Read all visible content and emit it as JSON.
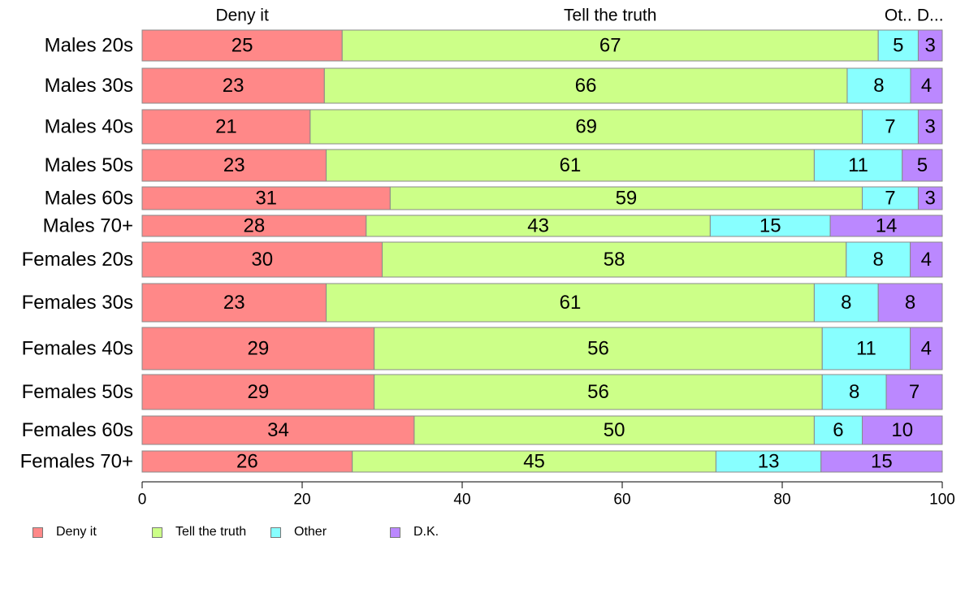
{
  "chart_data": {
    "type": "bar",
    "orientation": "horizontal",
    "stacked": "100%",
    "categories": [
      "Males 20s",
      "Males 30s",
      "Males 40s",
      "Males 50s",
      "Males 60s",
      "Males 70+",
      "Females 20s",
      "Females 30s",
      "Females 40s",
      "Females 50s",
      "Females 60s",
      "Females 70+"
    ],
    "series": [
      {
        "name": "Deny it",
        "values": [
          25,
          23,
          21,
          23,
          31,
          28,
          30,
          23,
          29,
          29,
          34,
          26
        ]
      },
      {
        "name": "Tell the truth",
        "values": [
          67,
          66,
          69,
          61,
          59,
          43,
          58,
          61,
          56,
          56,
          50,
          45
        ]
      },
      {
        "name": "Other",
        "values": [
          5,
          8,
          7,
          11,
          7,
          15,
          8,
          8,
          11,
          8,
          6,
          13
        ]
      },
      {
        "name": "D.K.",
        "values": [
          3,
          4,
          3,
          5,
          3,
          14,
          4,
          8,
          4,
          7,
          10,
          15
        ]
      }
    ],
    "column_labels": [
      "Deny it",
      "Tell the truth",
      "Ot..",
      "D..."
    ],
    "xlim": [
      0,
      100
    ],
    "xticks": [
      0,
      20,
      40,
      60,
      80,
      100
    ],
    "grid": false,
    "legend_position": "bottom",
    "colors": [
      "#ff8888",
      "#ccff88",
      "#88ffff",
      "#bb88ff"
    ]
  }
}
